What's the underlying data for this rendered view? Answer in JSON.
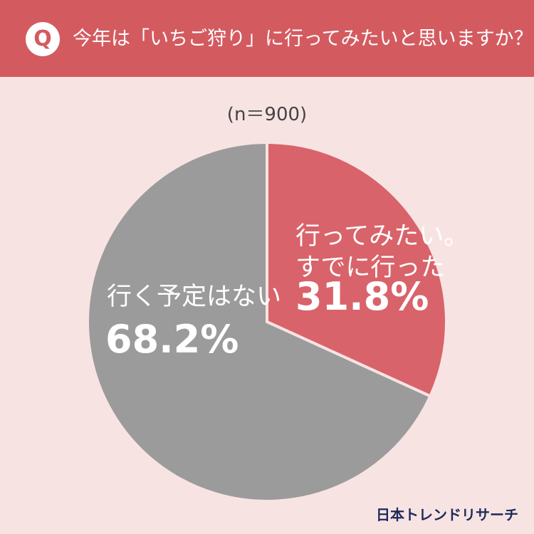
{
  "header": {
    "icon": "Q"
  },
  "chart_data": {
    "type": "pie",
    "title": "今年は「いちご狩り」に行ってみたいと思いますか？",
    "subtitle": "(n＝900)",
    "categories": [
      "行ってみたい。すでに行った",
      "行く予定はない"
    ],
    "values": [
      31.8,
      68.2
    ],
    "value_labels": [
      "31.8%",
      "68.2%"
    ],
    "colors": [
      "#d9636a",
      "#9b9b9b"
    ]
  },
  "source": "日本トレンドリサーチ"
}
